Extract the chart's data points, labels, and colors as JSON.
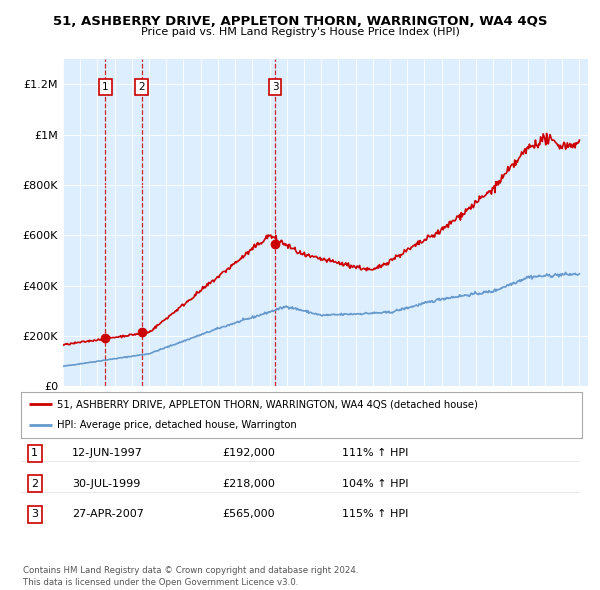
{
  "title": "51, ASHBERRY DRIVE, APPLETON THORN, WARRINGTON, WA4 4QS",
  "subtitle": "Price paid vs. HM Land Registry's House Price Index (HPI)",
  "sale_dates_num": [
    1997.4493,
    1999.5726,
    2007.3178
  ],
  "sale_prices": [
    192000,
    218000,
    565000
  ],
  "sale_labels": [
    "1",
    "2",
    "3"
  ],
  "legend_line1": "51, ASHBERRY DRIVE, APPLETON THORN, WARRINGTON, WA4 4QS (detached house)",
  "legend_line2": "HPI: Average price, detached house, Warrington",
  "table_rows": [
    [
      "1",
      "12-JUN-1997",
      "£192,000",
      "111% ↑ HPI"
    ],
    [
      "2",
      "30-JUL-1999",
      "£218,000",
      "104% ↑ HPI"
    ],
    [
      "3",
      "27-APR-2007",
      "£565,000",
      "115% ↑ HPI"
    ]
  ],
  "footer": "Contains HM Land Registry data © Crown copyright and database right 2024.\nThis data is licensed under the Open Government Licence v3.0.",
  "hpi_color": "#6699cc",
  "price_color": "#cc0000",
  "dashed_color": "#cc0000",
  "bg_color": "#ddeeff",
  "ylim": [
    0,
    1300000
  ],
  "yticks": [
    0,
    200000,
    400000,
    600000,
    800000,
    1000000,
    1200000
  ],
  "ytick_labels": [
    "£0",
    "£200K",
    "£400K",
    "£600K",
    "£800K",
    "£1M",
    "£1.2M"
  ],
  "xlim": [
    1995,
    2025.5
  ],
  "xticks": [
    1995,
    1996,
    1997,
    1998,
    1999,
    2000,
    2001,
    2002,
    2003,
    2004,
    2005,
    2006,
    2007,
    2008,
    2009,
    2010,
    2011,
    2012,
    2013,
    2014,
    2015,
    2016,
    2017,
    2018,
    2019,
    2020,
    2021,
    2022,
    2023,
    2024,
    2025
  ]
}
